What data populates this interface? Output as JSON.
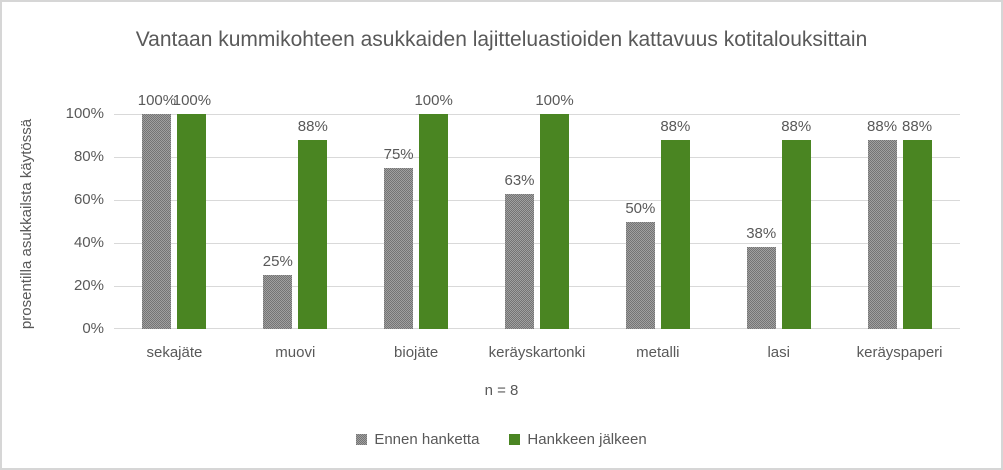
{
  "chart_data": {
    "type": "bar",
    "title": "Vantaan kummikohteen asukkaiden lajitteluastioiden kattavuus kotitalouksittain",
    "ylabel": "prosentilla asukkailsta käytössä",
    "xlabel": "n = 8",
    "categories": [
      "sekajäte",
      "muovi",
      "biojäte",
      "keräyskartonki",
      "metalli",
      "lasi",
      "keräyspaperi"
    ],
    "series": [
      {
        "name": "Ennen hanketta",
        "values": [
          100,
          25,
          75,
          63,
          50,
          38,
          88
        ],
        "fill": "pattern-gray"
      },
      {
        "name": "Hankkeen jälkeen",
        "values": [
          100,
          88,
          100,
          100,
          88,
          88,
          88
        ],
        "fill": "solid-green"
      }
    ],
    "data_label_suffix": "%",
    "y_ticks": [
      0,
      20,
      40,
      60,
      80,
      100
    ],
    "y_tick_suffix": "%",
    "ylim": [
      0,
      100
    ],
    "grid": true,
    "legend_position": "bottom"
  },
  "colors": {
    "green": "#4a8522",
    "gray_pattern_light": "#a0a0a0",
    "gray_pattern_dark": "#747474",
    "gridline": "#d9d9d9",
    "text": "#595959",
    "frame_border": "#d6d6d6"
  }
}
